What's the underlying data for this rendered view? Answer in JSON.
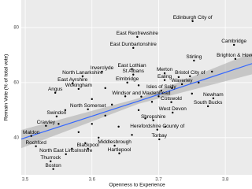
{
  "chart_data": {
    "type": "scatter",
    "x_label": "Openness to Experience",
    "y_label": "Remain Vote (% of total vote)",
    "xlim": [
      3.494,
      3.84
    ],
    "ylim": [
      26.5,
      90
    ],
    "xticks": [
      3.5,
      3.6,
      3.7,
      3.8
    ],
    "yticks": [
      40,
      60,
      80
    ],
    "grid": true,
    "background": "#ebebeb",
    "color": "#000000",
    "x": [
      3.751,
      3.813,
      3.668,
      3.662,
      3.815,
      3.753,
      3.747,
      3.615,
      3.66,
      3.586,
      3.709,
      3.662,
      3.709,
      3.653,
      3.735,
      3.571,
      3.58,
      3.545,
      3.704,
      3.674,
      3.782,
      3.774,
      3.719,
      3.721,
      3.594,
      3.547,
      3.531,
      3.692,
      3.698,
      3.701,
      3.509,
      3.516,
      3.634,
      3.641,
      3.594,
      3.561,
      3.538,
      3.542,
      3.56,
      3.6,
      3.62,
      3.63,
      3.65,
      3.67,
      3.68,
      3.69,
      3.7,
      3.72,
      3.64,
      3.61,
      3.58,
      3.66,
      3.73,
      3.76,
      3.78,
      3.62,
      3.55,
      3.59,
      3.71,
      3.67,
      3.75,
      3.6,
      3.57
    ],
    "values": [
      82.3,
      73.7,
      76.6,
      72.6,
      68.6,
      68,
      62.3,
      64,
      64.9,
      62.3,
      63.4,
      62.9,
      60.9,
      60,
      59.4,
      59.7,
      57.7,
      56.3,
      57.1,
      54.9,
      54.3,
      51.4,
      52.9,
      49.1,
      50.3,
      47.7,
      44.3,
      46.3,
      42.9,
      39.4,
      40.6,
      36.9,
      37.1,
      34.3,
      36,
      34,
      31.4,
      28.6,
      50,
      45,
      48,
      52,
      55,
      50,
      47,
      53,
      55,
      58,
      44,
      40,
      42,
      41,
      62,
      60,
      64,
      58,
      45,
      38,
      44,
      59,
      56,
      54,
      36
    ],
    "labels": [
      "Edinburgh City of",
      "Cambridge",
      "East Renfrewshire",
      "East Dunbartonshire",
      "Brighton & Hove",
      "Stirling",
      "Bristol City of",
      "Inverclyde",
      "East Lothian",
      "North Lanarkshire",
      "Merton",
      "St Albans",
      "Ealing",
      "Elmbridge",
      "Waverley",
      "East Ayrshire",
      "Wokingham",
      "Angus",
      "Isles of Scilly",
      "Windsor and Maidenhead",
      "Newham",
      "South Bucks",
      "Cotswold",
      "West Devon",
      "North Somerset",
      "Swindon",
      "Crawley",
      "Shropshire",
      "Herefordshire County of",
      "Torbay",
      "Maldon",
      "Rochford",
      "Middlesbrough",
      "Hartlepool",
      "Blackpool",
      "North East Lincolnshire",
      "Thurrock",
      "Boston",
      null,
      null,
      null,
      null,
      null,
      null,
      null,
      null,
      null,
      null,
      null,
      null,
      null,
      null,
      null,
      null,
      null,
      null,
      null,
      null,
      null,
      null,
      null,
      null,
      null
    ],
    "fit": {
      "color": "#3366ff",
      "band_color": "#999999",
      "x": [
        3.494,
        3.67,
        3.84
      ],
      "y": [
        39.5,
        53.3,
        66.9
      ],
      "lower": [
        36.2,
        52.3,
        63
      ],
      "upper": [
        42.8,
        54.3,
        70.8
      ]
    }
  }
}
